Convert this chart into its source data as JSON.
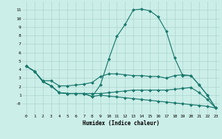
{
  "xlabel": "Humidex (Indice chaleur)",
  "background_color": "#cceee8",
  "grid_color": "#aad4ce",
  "line_color": "#1a7a6e",
  "xlim": [
    -0.5,
    23.5
  ],
  "ylim": [
    -1.2,
    12
  ],
  "xticks": [
    0,
    1,
    2,
    3,
    4,
    5,
    6,
    7,
    8,
    9,
    10,
    11,
    12,
    13,
    14,
    15,
    16,
    17,
    18,
    19,
    20,
    21,
    22,
    23
  ],
  "yticks": [
    0,
    1,
    2,
    3,
    4,
    5,
    6,
    7,
    8,
    9,
    10,
    11
  ],
  "ytick_labels": [
    "-0",
    "1",
    "2",
    "3",
    "4",
    "5",
    "6",
    "7",
    "8",
    "9",
    "10",
    "11"
  ],
  "curve1_x": [
    0,
    1,
    2,
    3,
    4,
    5,
    6,
    7,
    8,
    9,
    10,
    11,
    12,
    13,
    14,
    15,
    16,
    17,
    18,
    19,
    20,
    21,
    22,
    23
  ],
  "curve1_y": [
    4.4,
    3.8,
    2.6,
    2.1,
    1.3,
    1.2,
    1.2,
    1.2,
    0.85,
    2.2,
    5.2,
    7.9,
    9.3,
    11.0,
    11.1,
    10.9,
    10.2,
    8.5,
    5.4,
    3.3,
    3.3,
    2.2,
    1.0,
    -0.5
  ],
  "curve2_x": [
    0,
    1,
    2,
    3,
    4,
    5,
    6,
    7,
    8,
    9,
    10,
    11,
    12,
    13,
    14,
    15,
    16,
    17,
    18,
    19,
    20,
    21,
    22,
    23
  ],
  "curve2_y": [
    4.4,
    3.8,
    2.7,
    2.7,
    2.1,
    2.1,
    2.2,
    2.3,
    2.5,
    3.2,
    3.5,
    3.5,
    3.4,
    3.3,
    3.3,
    3.2,
    3.2,
    3.0,
    3.3,
    3.4,
    3.3,
    2.2,
    1.0,
    -0.5
  ],
  "curve3_x": [
    0,
    1,
    2,
    3,
    4,
    5,
    6,
    7,
    8,
    9,
    10,
    11,
    12,
    13,
    14,
    15,
    16,
    17,
    18,
    19,
    20,
    21,
    22,
    23
  ],
  "curve3_y": [
    4.4,
    3.8,
    2.6,
    2.1,
    1.3,
    1.2,
    1.2,
    1.2,
    1.2,
    1.2,
    1.3,
    1.4,
    1.5,
    1.6,
    1.6,
    1.6,
    1.6,
    1.6,
    1.7,
    1.8,
    1.9,
    1.3,
    0.5,
    -0.5
  ],
  "curve4_x": [
    0,
    1,
    2,
    3,
    4,
    5,
    6,
    7,
    8,
    9,
    10,
    11,
    12,
    13,
    14,
    15,
    16,
    17,
    18,
    19,
    20,
    21,
    22,
    23
  ],
  "curve4_y": [
    4.4,
    3.8,
    2.6,
    2.1,
    1.3,
    1.2,
    1.2,
    1.2,
    0.85,
    1.0,
    0.9,
    0.8,
    0.7,
    0.6,
    0.5,
    0.4,
    0.3,
    0.2,
    0.1,
    0.0,
    -0.1,
    -0.2,
    -0.3,
    -0.5
  ],
  "markersize": 2.0,
  "linewidth": 0.9
}
